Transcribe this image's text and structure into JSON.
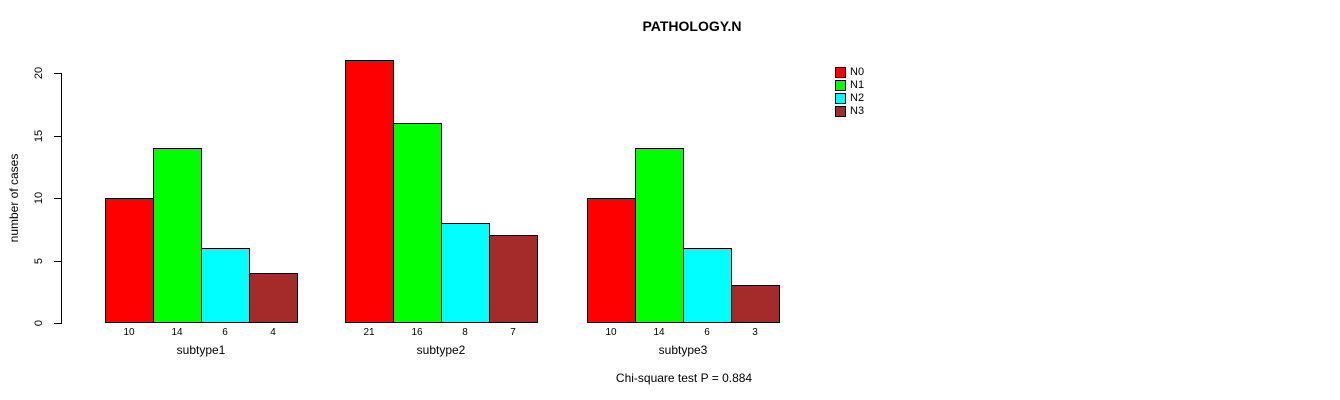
{
  "chart_data": {
    "type": "bar",
    "title": "PATHOLOGY.N",
    "ylabel": "number of cases",
    "xlabel": "",
    "ylim": [
      0,
      20
    ],
    "yticks": [
      0,
      5,
      10,
      15,
      20
    ],
    "grid": false,
    "legend_position": "top-right",
    "categories": [
      "subtype1",
      "subtype2",
      "subtype3"
    ],
    "series": [
      {
        "name": "N0",
        "color": "#ff0000",
        "values": [
          10,
          21,
          10
        ]
      },
      {
        "name": "N1",
        "color": "#00ff00",
        "values": [
          14,
          16,
          14
        ]
      },
      {
        "name": "N2",
        "color": "#00ffff",
        "values": [
          6,
          8,
          6
        ]
      },
      {
        "name": "N3",
        "color": "#a52a2a",
        "values": [
          4,
          7,
          3
        ]
      }
    ],
    "bar_value_labels_shown": true,
    "annotation": "Chi-square test P = 0.884"
  },
  "colors": {
    "background": "#ffffff",
    "axis": "#000000",
    "text": "#000000"
  }
}
